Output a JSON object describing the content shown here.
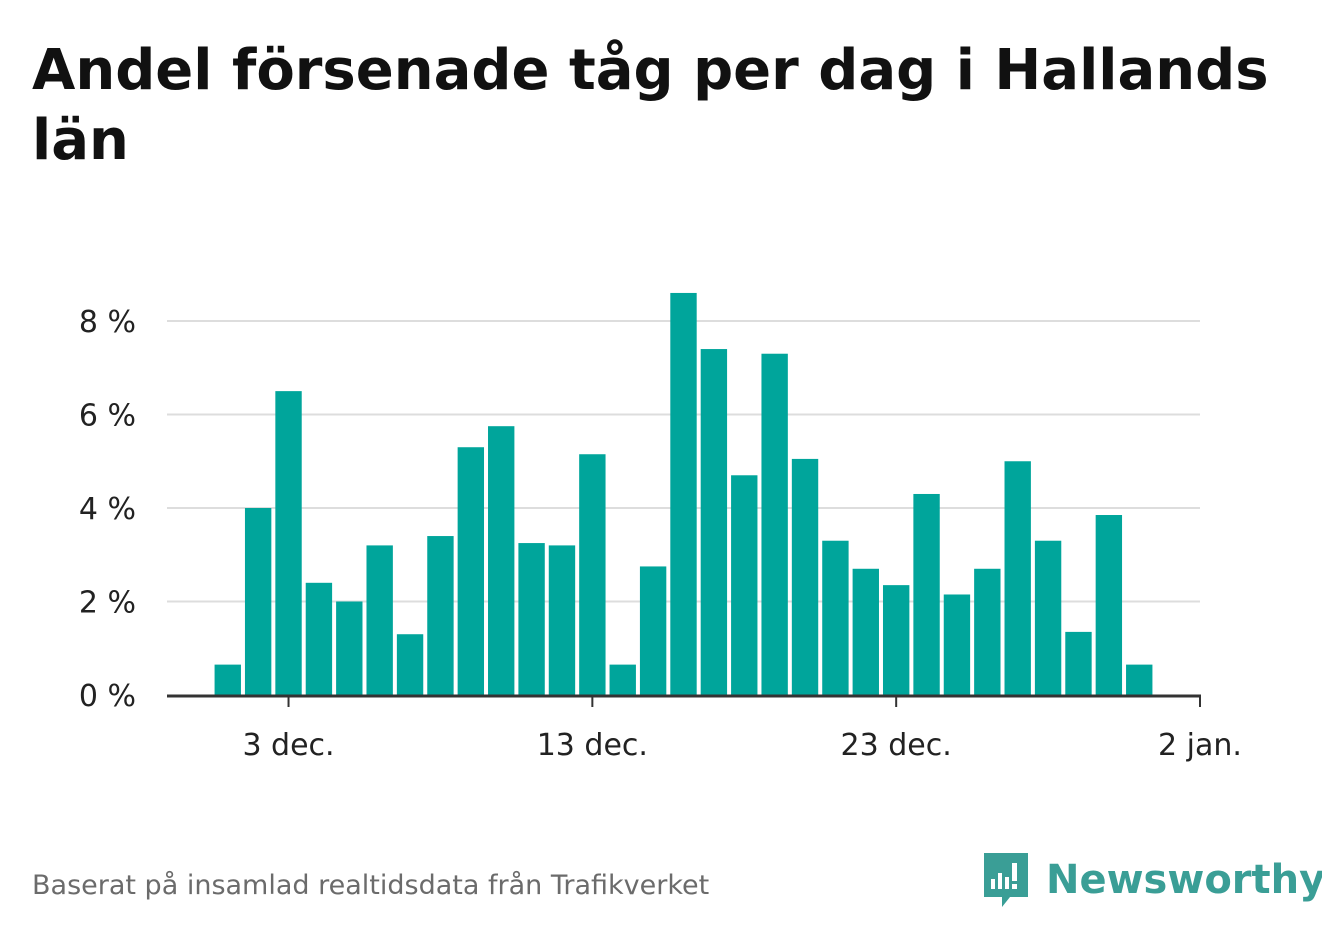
{
  "title": "Andel försenade tåg per dag i Hallands län",
  "footer": "Baserat på insamlad realtidsdata från Trafikverket",
  "brand": {
    "name": "Newsworthy",
    "icon": "newsworthy-logo-icon",
    "color": "#3a9e96"
  },
  "colors": {
    "bar": "#00a59b",
    "grid": "#dddddd",
    "axis": "#333333"
  },
  "chart_data": {
    "type": "bar",
    "xlabel": "",
    "ylabel": "",
    "ylim": [
      0,
      8
    ],
    "grid": true,
    "y_ticks": [
      {
        "value": 0,
        "label": "0 %"
      },
      {
        "value": 2,
        "label": "2 %"
      },
      {
        "value": 4,
        "label": "4 %"
      },
      {
        "value": 6,
        "label": "6 %"
      },
      {
        "value": 8,
        "label": "8 %"
      }
    ],
    "x_ticks": [
      {
        "date": "2019-12-03",
        "label": "3 dec."
      },
      {
        "date": "2019-12-13",
        "label": "13 dec."
      },
      {
        "date": "2019-12-23",
        "label": "23 dec."
      },
      {
        "date": "2020-01-02",
        "label": "2 jan."
      }
    ],
    "x_range": [
      "2019-11-29",
      "2020-01-02"
    ],
    "categories": [
      "2019-12-01",
      "2019-12-02",
      "2019-12-03",
      "2019-12-04",
      "2019-12-05",
      "2019-12-06",
      "2019-12-07",
      "2019-12-08",
      "2019-12-09",
      "2019-12-10",
      "2019-12-11",
      "2019-12-12",
      "2019-12-13",
      "2019-12-14",
      "2019-12-15",
      "2019-12-16",
      "2019-12-17",
      "2019-12-18",
      "2019-12-19",
      "2019-12-20",
      "2019-12-21",
      "2019-12-22",
      "2019-12-23",
      "2019-12-24",
      "2019-12-25",
      "2019-12-26",
      "2019-12-27",
      "2019-12-28",
      "2019-12-29",
      "2019-12-30",
      "2019-12-31"
    ],
    "values": [
      0.65,
      4.0,
      6.5,
      2.4,
      2.0,
      3.2,
      1.3,
      3.4,
      5.3,
      5.75,
      3.25,
      3.2,
      5.15,
      0.65,
      2.75,
      8.6,
      7.4,
      4.7,
      7.3,
      5.05,
      3.3,
      2.7,
      2.35,
      4.3,
      2.15,
      2.7,
      5.0,
      3.3,
      1.35,
      3.85,
      0.65
    ]
  }
}
